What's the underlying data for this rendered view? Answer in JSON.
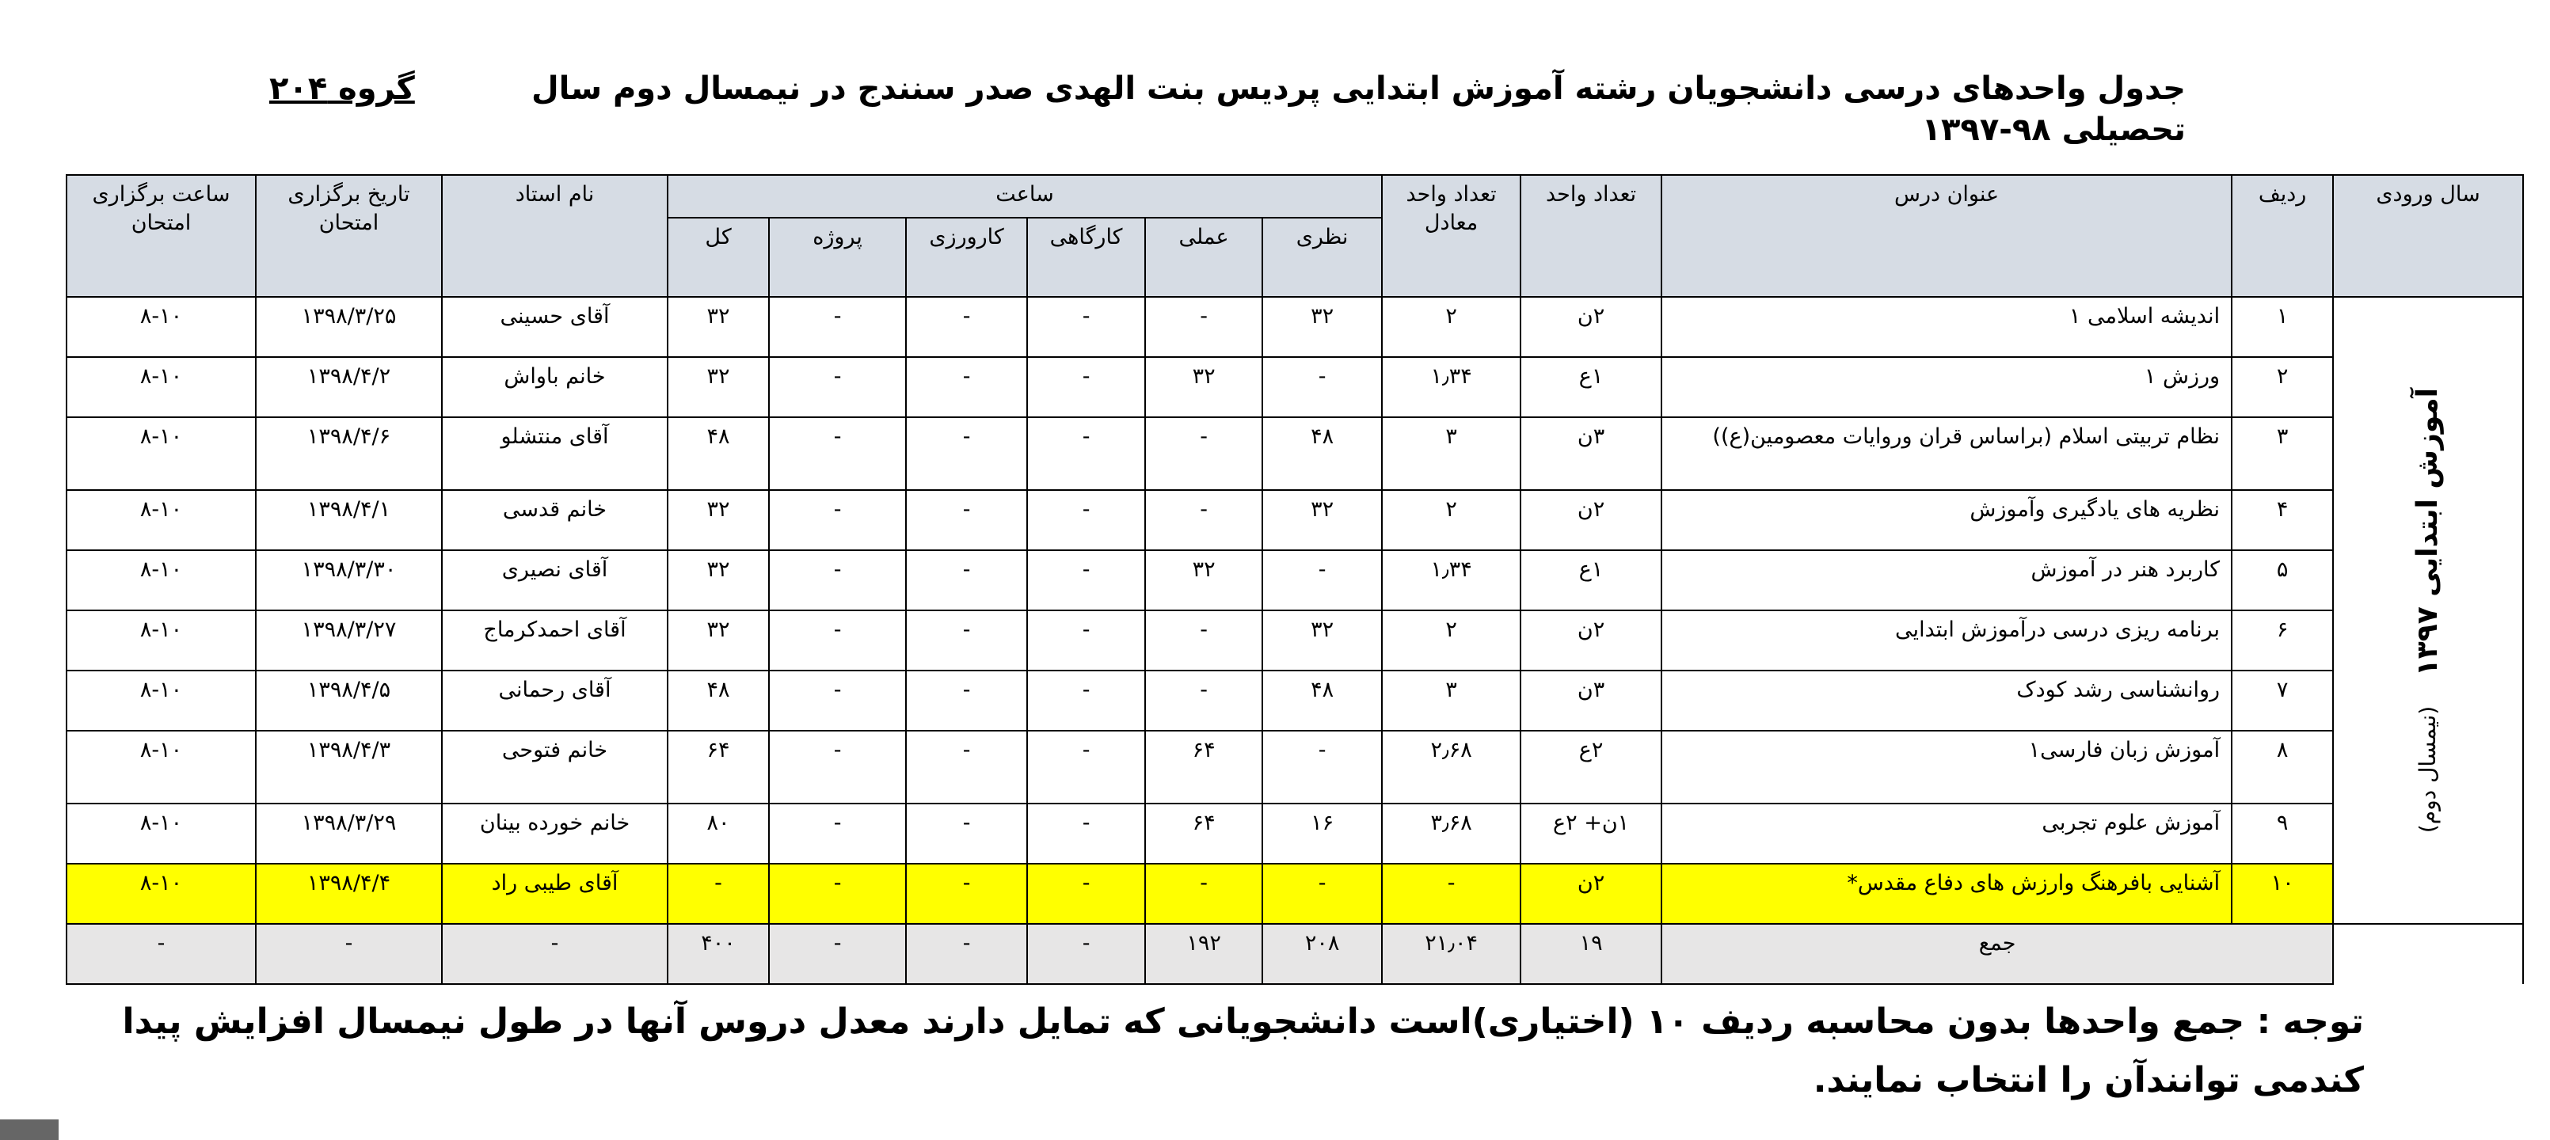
{
  "title": "جدول واحدهای درسی  دانشجویان رشته آموزش ابتدایی پردیس بنت الهدی صدر سنندج در نیمسال دوم  سال تحصیلی ۹۸-۱۳۹۷",
  "group": "گروه ۲۰۴",
  "headers": {
    "entry_year": "سال ورودی",
    "row": "ردیف",
    "course": "عنوان درس",
    "units": "تعداد واحد",
    "equiv_units": "تعداد واحد معادل",
    "hours": "ساعت",
    "theory": "نظری",
    "practical": "عملی",
    "workshop": "کارگاهی",
    "internship": "کارورزی",
    "project": "پروژه",
    "total": "کل",
    "instructor": "نام استاد",
    "exam_date": "تاریخ برگزاری امتحان",
    "exam_time": "ساعت برگزاری امتحان"
  },
  "entry_year": {
    "label": "آموزش ابتدایی ۱۳۹۷",
    "sub": "(نیمسال دوم)"
  },
  "rows": [
    [
      "۱",
      "اندیشه اسلامی ۱",
      "۲ن",
      "۲",
      "۳۲",
      "-",
      "-",
      "-",
      "-",
      "۳۲",
      "آقای حسینی",
      "۱۳۹۸/۳/۲۵",
      "۸-۱۰"
    ],
    [
      "۲",
      "ورزش ۱",
      "۱ع",
      "۱٫۳۴",
      "-",
      "۳۲",
      "-",
      "-",
      "-",
      "۳۲",
      "خانم باواش",
      "۱۳۹۸/۴/۲",
      "۸-۱۰"
    ],
    [
      "۳",
      "نظام تربیتی اسلام (براساس قران وروایات معصومین(ع))",
      "۳ن",
      "۳",
      "۴۸",
      "-",
      "-",
      "-",
      "-",
      "۴۸",
      "آقای منتشلو",
      "۱۳۹۸/۴/۶",
      "۸-۱۰"
    ],
    [
      "۴",
      "نظریه های یادگیری وآموزش",
      "۲ن",
      "۲",
      "۳۲",
      "-",
      "-",
      "-",
      "-",
      "۳۲",
      "خانم قدسی",
      "۱۳۹۸/۴/۱",
      "۸-۱۰"
    ],
    [
      "۵",
      "کاربرد هنر در آموزش",
      "۱ع",
      "۱٫۳۴",
      "-",
      "۳۲",
      "-",
      "-",
      "-",
      "۳۲",
      "آقای نصیری",
      "۱۳۹۸/۳/۳۰",
      "۸-۱۰"
    ],
    [
      "۶",
      "برنامه ریزی درسی درآموزش ابتدایی",
      "۲ن",
      "۲",
      "۳۲",
      "-",
      "-",
      "-",
      "-",
      "۳۲",
      "آقای احمدکرماج",
      "۱۳۹۸/۳/۲۷",
      "۸-۱۰"
    ],
    [
      "۷",
      "روانشناسی رشد کودک",
      "۳ن",
      "۳",
      "۴۸",
      "-",
      "-",
      "-",
      "-",
      "۴۸",
      "آقای رحمانی",
      "۱۳۹۸/۴/۵",
      "۸-۱۰"
    ],
    [
      "۸",
      "آموزش زبان فارسی۱",
      "۲ع",
      "۲٫۶۸",
      "-",
      "۶۴",
      "-",
      "-",
      "-",
      "۶۴",
      "خانم فتوحی",
      "۱۳۹۸/۴/۳",
      "۸-۱۰"
    ],
    [
      "۹",
      "آموزش علوم تجربی",
      "۱ن+ ۲ع",
      "۳٫۶۸",
      "۱۶",
      "۶۴",
      "-",
      "-",
      "-",
      "۸۰",
      "خانم خورده بینان",
      "۱۳۹۸/۳/۲۹",
      "۸-۱۰"
    ],
    [
      "۱۰",
      "آشنایی بافرهنگ وارزش های دفاع مقدس*",
      "۲ن",
      "-",
      "-",
      "-",
      "-",
      "-",
      "-",
      "-",
      "آقای طیبی راد",
      "۱۳۹۸/۴/۴",
      "۸-۱۰"
    ]
  ],
  "highlight_color": "#ffff00",
  "header_color": "#d6dce4",
  "total_row": [
    "جمع",
    "۱۹",
    "۲۱٫۰۴",
    "۲۰۸",
    "۱۹۲",
    "-",
    "-",
    "-",
    "۴۰۰",
    "-",
    "-",
    "-"
  ],
  "note": "توجه : جمع واحدها بدون محاسبه ردیف ۱۰ (اختیاری)است دانشجویانی که تمایل دارند معدل دروس آنها در طول نیمسال افزایش پیدا کندمی توانندآن  را انتخاب نمایند."
}
